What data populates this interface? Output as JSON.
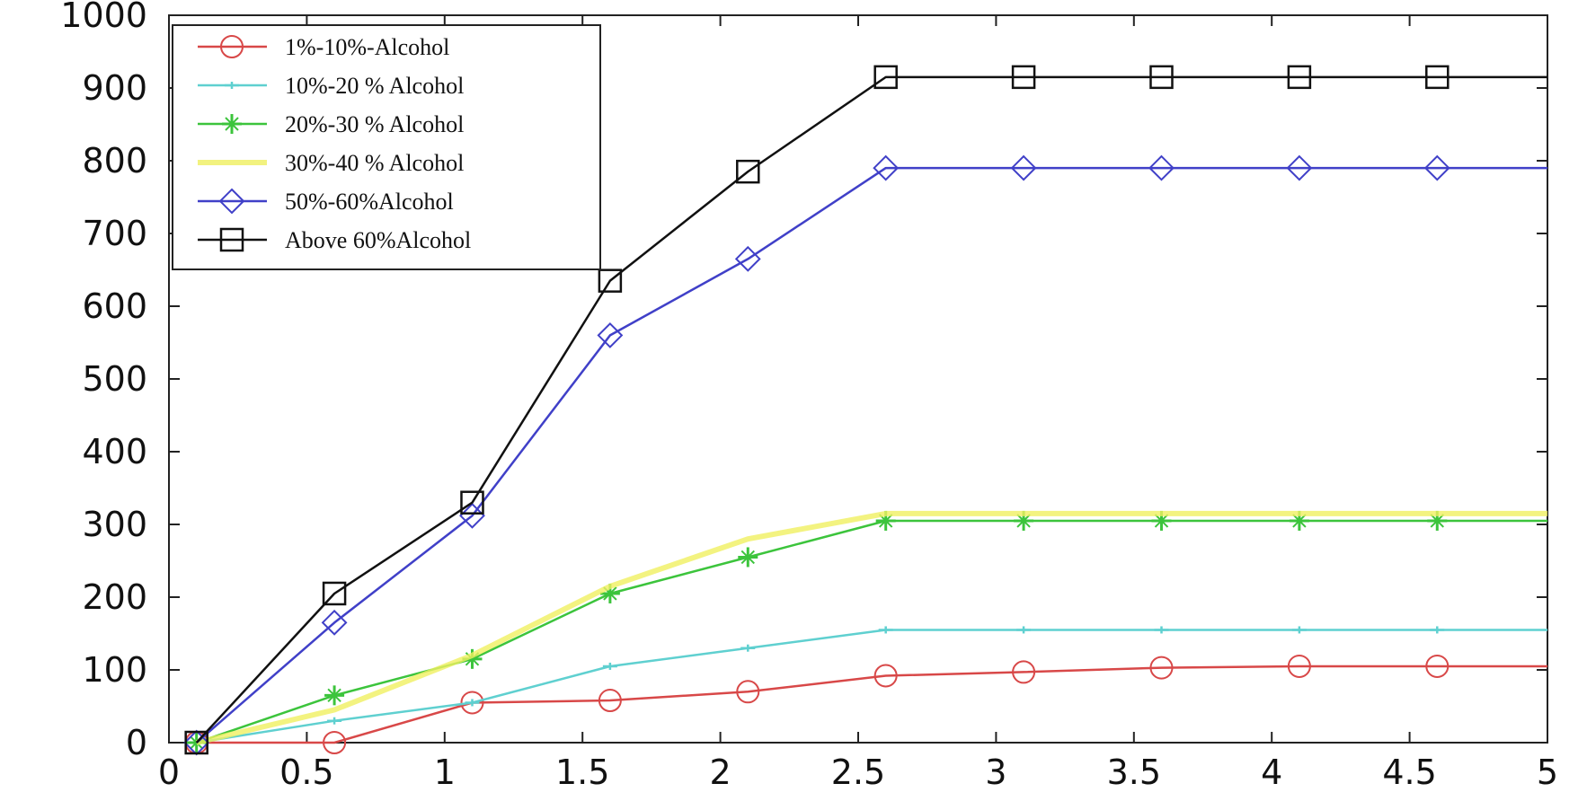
{
  "chart_data": {
    "type": "line",
    "title": "",
    "xlabel": "",
    "ylabel": "",
    "xlim": [
      0,
      5
    ],
    "ylim": [
      0,
      1000
    ],
    "xticks": [
      "0",
      "0.5",
      "1",
      "1.5",
      "2",
      "2.5",
      "3",
      "3.5",
      "4",
      "4.5",
      "5"
    ],
    "yticks": [
      "0",
      "100",
      "200",
      "300",
      "400",
      "500",
      "600",
      "700",
      "800",
      "900",
      "1000"
    ],
    "grid": false,
    "legend_position": "top-left",
    "series": [
      {
        "name": "1%-10%-Alcohol",
        "color": "#d84848",
        "marker": "circle",
        "x": [
          0.1,
          0.6,
          1.1,
          1.6,
          2.1,
          2.6,
          3.1,
          3.6,
          4.1,
          4.6,
          5.0
        ],
        "y": [
          0,
          0,
          55,
          58,
          70,
          92,
          97,
          103,
          105,
          105,
          105
        ],
        "marker_count": 10
      },
      {
        "name": "10%-20 % Alcohol",
        "color": "#5fd0d0",
        "marker": "plus",
        "x": [
          0.1,
          0.6,
          1.1,
          1.6,
          2.1,
          2.6,
          3.1,
          3.6,
          4.1,
          4.6,
          5.0
        ],
        "y": [
          0,
          30,
          55,
          105,
          130,
          155,
          155,
          155,
          155,
          155,
          155
        ],
        "marker_count": 10
      },
      {
        "name": "20%-30 % Alcohol",
        "color": "#3cc43c",
        "marker": "star",
        "x": [
          0.1,
          0.6,
          1.1,
          1.6,
          2.1,
          2.6,
          3.1,
          3.6,
          4.1,
          4.6,
          5.0
        ],
        "y": [
          0,
          65,
          115,
          205,
          255,
          305,
          305,
          305,
          305,
          305,
          305
        ],
        "marker_count": 10
      },
      {
        "name": "30%-40 % Alcohol",
        "color": "#f0f060",
        "marker": "none",
        "x": [
          0.1,
          0.6,
          1.1,
          1.6,
          2.1,
          2.6,
          3.1,
          3.6,
          4.1,
          4.6,
          5.0
        ],
        "y": [
          0,
          45,
          120,
          215,
          280,
          315,
          315,
          315,
          315,
          315,
          315
        ],
        "marker_count": 0
      },
      {
        "name": "50%-60%Alcohol",
        "color": "#4040c8",
        "marker": "diamond",
        "x": [
          0.1,
          0.6,
          1.1,
          1.6,
          2.1,
          2.6,
          3.1,
          3.6,
          4.1,
          4.6,
          5.0
        ],
        "y": [
          0,
          165,
          312,
          560,
          665,
          790,
          790,
          790,
          790,
          790,
          790
        ],
        "marker_count": 10
      },
      {
        "name": "Above 60%Alcohol",
        "color": "#111111",
        "marker": "square",
        "x": [
          0.1,
          0.6,
          1.1,
          1.6,
          2.1,
          2.6,
          3.1,
          3.6,
          4.1,
          4.6,
          5.0
        ],
        "y": [
          0,
          205,
          330,
          635,
          785,
          915,
          915,
          915,
          915,
          915,
          915
        ],
        "marker_count": 10
      }
    ]
  }
}
